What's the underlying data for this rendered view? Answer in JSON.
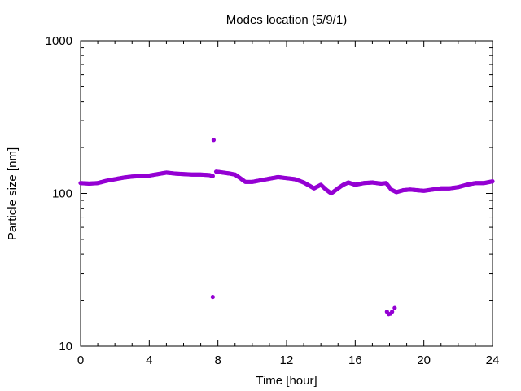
{
  "chart_data": {
    "type": "scatter",
    "title": "Modes location (5/9/1)",
    "xlabel": "Time [hour]",
    "ylabel": "Particle size [nm]",
    "xlim": [
      0,
      24
    ],
    "ylim": [
      10,
      1000
    ],
    "yscale": "log",
    "grid": false,
    "x_ticks": [
      0,
      4,
      8,
      12,
      16,
      20,
      24
    ],
    "x_tick_labels": [
      "0",
      "4",
      "8",
      "12",
      "16",
      "20",
      "24"
    ],
    "y_ticks": [
      10,
      100,
      1000
    ],
    "y_tick_labels": [
      "10",
      "100",
      "1000"
    ],
    "marker_color": "#9400d3",
    "main_mode": {
      "x": [
        0,
        0.5,
        1,
        1.5,
        2,
        2.5,
        3,
        3.5,
        4,
        4.5,
        5,
        5.5,
        6,
        6.5,
        7,
        7.5,
        7.7,
        7.9,
        8.3,
        8.7,
        9,
        9.3,
        9.6,
        10,
        10.5,
        11,
        11.5,
        12,
        12.5,
        13,
        13.3,
        13.6,
        14,
        14.3,
        14.6,
        15,
        15.3,
        15.6,
        16,
        16.5,
        17,
        17.5,
        17.8,
        18.1,
        18.4,
        18.8,
        19.2,
        19.6,
        20,
        20.5,
        21,
        21.5,
        22,
        22.5,
        23,
        23.5,
        24
      ],
      "y": [
        117,
        116,
        117,
        121,
        124,
        127,
        129,
        130,
        131,
        134,
        137,
        135,
        134,
        133,
        133,
        132,
        130,
        139,
        137,
        135,
        133,
        126,
        119,
        119,
        122,
        125,
        128,
        126,
        124,
        118,
        113,
        108,
        114,
        106,
        100,
        108,
        114,
        118,
        114,
        117,
        118,
        116,
        117,
        106,
        102,
        105,
        106,
        105,
        104,
        106,
        108,
        108,
        110,
        114,
        117,
        117,
        120
      ]
    },
    "outliers": {
      "x": [
        7.75,
        7.7,
        17.85,
        17.95,
        18.05,
        18.15,
        18.3
      ],
      "y": [
        224,
        21,
        16.8,
        16.2,
        16.3,
        16.8,
        17.8
      ]
    }
  }
}
